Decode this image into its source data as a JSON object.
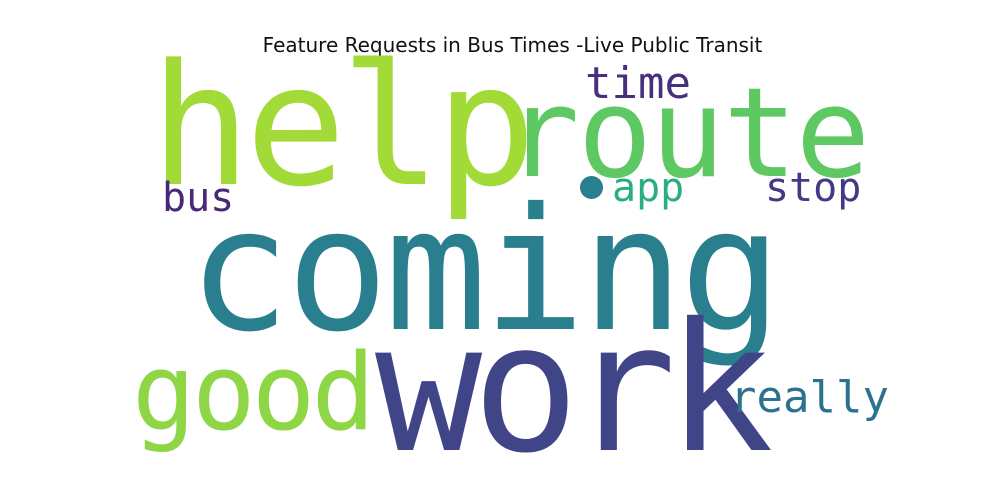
{
  "title": "Feature Requests in Bus Times -Live Public Transit",
  "words": [
    {
      "text": "coming",
      "color": "#2a7f8e"
    },
    {
      "text": "work",
      "color": "#404588"
    },
    {
      "text": "help",
      "color": "#a2da37"
    },
    {
      "text": "route",
      "color": "#5ec962"
    },
    {
      "text": "good",
      "color": "#8ed645"
    },
    {
      "text": "time",
      "color": "#472f7d"
    },
    {
      "text": "app",
      "color": "#29af7f"
    },
    {
      "text": "stop",
      "color": "#443a83"
    },
    {
      "text": "bus",
      "color": "#482878"
    },
    {
      "text": "really",
      "color": "#2c728e"
    }
  ],
  "dot_color": "#2a7f8e"
}
